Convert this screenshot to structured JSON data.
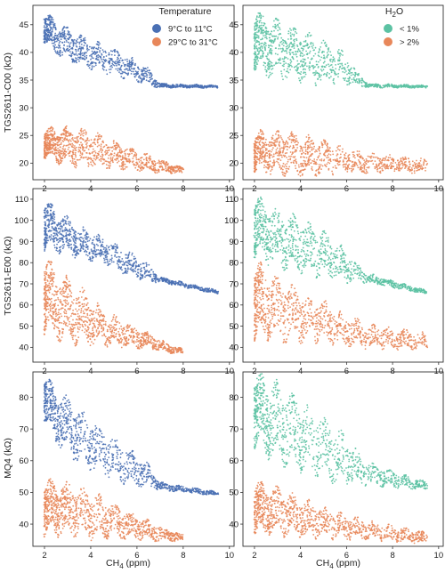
{
  "colors": {
    "blue": "#4a70b4",
    "orange": "#e8875a",
    "green": "#5cc2a3"
  },
  "axis_labels": {
    "x_prefix": "CH",
    "x_sub": "4",
    "x_suffix": " (ppm)",
    "row_ylabels": [
      "TGS2611-C00 (kΩ)",
      "TGS2611-E00 (kΩ)",
      "MQ4 (kΩ)"
    ]
  },
  "legend_left": {
    "title": "Temperature",
    "items": [
      {
        "label": "9°C to 11°C",
        "color": "#4a70b4"
      },
      {
        "label": "29°C to 31°C",
        "color": "#e8875a"
      }
    ]
  },
  "legend_right": {
    "title_prefix": "H",
    "title_sub": "2",
    "title_suffix": "O",
    "items": [
      {
        "label": "< 1%",
        "color": "#5cc2a3"
      },
      {
        "label": "> 2%",
        "color": "#e8875a"
      }
    ]
  },
  "chart_data": [
    {
      "type": "scatter",
      "row": 0,
      "col": 0,
      "xlim": [
        1.5,
        10.2
      ],
      "ylim": [
        17,
        48.5
      ],
      "xticks": [
        2,
        4,
        6,
        8,
        10
      ],
      "yticks": [
        20,
        25,
        30,
        35,
        40,
        45
      ],
      "ylabel": "TGS2611-C00 (kΩ)",
      "series": [
        {
          "name": "9°C to 11°C",
          "color": "#4a70b4",
          "band": [
            [
              2.0,
              44.5,
              4.5
            ],
            [
              2.5,
              42.5,
              5.0
            ],
            [
              3.5,
              40.5,
              4.5
            ],
            [
              4.5,
              39.0,
              4.0
            ],
            [
              5.5,
              37.5,
              3.5
            ],
            [
              6.5,
              35.5,
              2.5
            ],
            [
              7.0,
              34.0,
              0.6
            ],
            [
              9.5,
              33.8,
              0.4
            ]
          ]
        },
        {
          "name": "29°C to 31°C",
          "color": "#e8875a",
          "band": [
            [
              2.0,
              23.5,
              4.5
            ],
            [
              3.0,
              23.0,
              5.5
            ],
            [
              4.0,
              22.5,
              5.5
            ],
            [
              5.0,
              21.5,
              4.0
            ],
            [
              6.0,
              20.5,
              3.0
            ],
            [
              7.0,
              19.5,
              2.0
            ],
            [
              8.0,
              18.6,
              0.8
            ]
          ]
        }
      ]
    },
    {
      "type": "scatter",
      "row": 0,
      "col": 1,
      "xlim": [
        1.5,
        10.2
      ],
      "ylim": [
        17,
        48.5
      ],
      "xticks": [
        2,
        4,
        6,
        8,
        10
      ],
      "yticks": [
        20,
        25,
        30,
        35,
        40,
        45
      ],
      "series": [
        {
          "name": "< 1%",
          "color": "#5cc2a3",
          "band": [
            [
              2.0,
              42.0,
              9.0
            ],
            [
              3.0,
              40.5,
              8.5
            ],
            [
              4.0,
              39.5,
              7.5
            ],
            [
              5.0,
              38.0,
              6.5
            ],
            [
              6.0,
              37.0,
              4.5
            ],
            [
              6.5,
              35.0,
              2.0
            ],
            [
              7.0,
              34.0,
              0.6
            ],
            [
              9.5,
              33.8,
              0.4
            ]
          ]
        },
        {
          "name": "> 2%",
          "color": "#e8875a",
          "band": [
            [
              2.0,
              22.0,
              6.0
            ],
            [
              3.0,
              22.0,
              6.5
            ],
            [
              4.0,
              21.5,
              6.0
            ],
            [
              5.0,
              21.0,
              5.0
            ],
            [
              6.0,
              20.5,
              3.5
            ],
            [
              7.0,
              20.0,
              3.0
            ],
            [
              8.0,
              19.8,
              2.5
            ],
            [
              9.5,
              19.5,
              2.0
            ]
          ]
        }
      ]
    },
    {
      "type": "scatter",
      "row": 1,
      "col": 0,
      "xlim": [
        1.5,
        10.2
      ],
      "ylim": [
        33,
        115
      ],
      "xticks": [
        2,
        4,
        6,
        8,
        10
      ],
      "yticks": [
        40,
        50,
        60,
        70,
        80,
        90,
        100,
        110
      ],
      "ylabel": "TGS2611-E00 (kΩ)",
      "series": [
        {
          "name": "9°C to 11°C",
          "color": "#4a70b4",
          "band": [
            [
              2.0,
              98.0,
              20.0
            ],
            [
              2.5,
              95.0,
              16.0
            ],
            [
              3.5,
              90.0,
              12.0
            ],
            [
              4.5,
              86.0,
              10.0
            ],
            [
              5.5,
              80.0,
              10.0
            ],
            [
              6.5,
              75.0,
              7.0
            ],
            [
              7.0,
              72.0,
              2.0
            ],
            [
              9.5,
              66.0,
              1.5
            ]
          ]
        },
        {
          "name": "29°C to 31°C",
          "color": "#e8875a",
          "band": [
            [
              2.0,
              65.0,
              30.0
            ],
            [
              2.5,
              60.0,
              26.0
            ],
            [
              3.5,
              55.0,
              22.0
            ],
            [
              4.5,
              50.0,
              14.0
            ],
            [
              5.5,
              46.0,
              10.0
            ],
            [
              6.5,
              43.0,
              6.0
            ],
            [
              7.5,
              39.0,
              3.0
            ],
            [
              8.0,
              38.0,
              2.0
            ]
          ]
        }
      ]
    },
    {
      "type": "scatter",
      "row": 1,
      "col": 1,
      "xlim": [
        1.5,
        10.2
      ],
      "ylim": [
        33,
        115
      ],
      "xticks": [
        2,
        4,
        6,
        8,
        10
      ],
      "yticks": [
        40,
        50,
        60,
        70,
        80,
        90,
        100,
        110
      ],
      "series": [
        {
          "name": "< 1%",
          "color": "#5cc2a3",
          "band": [
            [
              2.0,
              97.0,
              24.0
            ],
            [
              3.0,
              92.0,
              22.0
            ],
            [
              4.0,
              88.0,
              20.0
            ],
            [
              5.0,
              84.0,
              18.0
            ],
            [
              6.0,
              78.0,
              12.0
            ],
            [
              6.8,
              73.0,
              4.0
            ],
            [
              9.5,
              66.0,
              1.5
            ]
          ]
        },
        {
          "name": "> 2%",
          "color": "#e8875a",
          "band": [
            [
              2.0,
              62.0,
              30.0
            ],
            [
              3.0,
              58.0,
              24.0
            ],
            [
              4.0,
              55.0,
              20.0
            ],
            [
              5.0,
              52.0,
              16.0
            ],
            [
              6.0,
              48.0,
              12.0
            ],
            [
              7.0,
              45.0,
              9.0
            ],
            [
              8.0,
              44.0,
              8.0
            ],
            [
              9.5,
              43.0,
              6.0
            ]
          ]
        }
      ]
    },
    {
      "type": "scatter",
      "row": 2,
      "col": 0,
      "xlim": [
        1.5,
        10.2
      ],
      "ylim": [
        33,
        88
      ],
      "xticks": [
        2,
        4,
        6,
        8,
        10
      ],
      "yticks": [
        40,
        50,
        60,
        70,
        80
      ],
      "ylabel": "MQ4 (kΩ)",
      "series": [
        {
          "name": "9°C to 11°C",
          "color": "#4a70b4",
          "band": [
            [
              2.0,
              80.0,
              12.0
            ],
            [
              2.5,
              74.0,
              14.0
            ],
            [
              3.5,
              68.0,
              14.0
            ],
            [
              4.5,
              63.0,
              12.0
            ],
            [
              5.5,
              59.0,
              10.0
            ],
            [
              6.5,
              55.0,
              6.0
            ],
            [
              7.0,
              52.0,
              2.0
            ],
            [
              9.5,
              49.5,
              1.0
            ]
          ]
        },
        {
          "name": "29°C to 31°C",
          "color": "#e8875a",
          "band": [
            [
              2.0,
              45.0,
              14.0
            ],
            [
              3.0,
              45.0,
              14.0
            ],
            [
              4.0,
              43.0,
              12.0
            ],
            [
              5.0,
              41.0,
              9.0
            ],
            [
              6.0,
              39.0,
              6.0
            ],
            [
              7.0,
              37.0,
              4.0
            ],
            [
              8.0,
              35.5,
              2.0
            ]
          ]
        }
      ]
    },
    {
      "type": "scatter",
      "row": 2,
      "col": 1,
      "xlim": [
        1.5,
        10.2
      ],
      "ylim": [
        33,
        88
      ],
      "xticks": [
        2,
        4,
        6,
        8,
        10
      ],
      "yticks": [
        40,
        50,
        60,
        70,
        80
      ],
      "series": [
        {
          "name": "< 1%",
          "color": "#5cc2a3",
          "band": [
            [
              2.0,
              76.0,
              20.0
            ],
            [
              3.0,
              72.0,
              20.0
            ],
            [
              4.0,
              68.0,
              18.0
            ],
            [
              5.0,
              64.0,
              16.0
            ],
            [
              6.0,
              60.0,
              12.0
            ],
            [
              6.8,
              56.0,
              6.0
            ],
            [
              9.5,
              52.0,
              2.0
            ]
          ]
        },
        {
          "name": "> 2%",
          "color": "#e8875a",
          "band": [
            [
              2.0,
              45.0,
              14.0
            ],
            [
              3.0,
              44.0,
              12.0
            ],
            [
              4.0,
              42.0,
              10.0
            ],
            [
              5.0,
              40.5,
              8.0
            ],
            [
              6.0,
              39.0,
              6.0
            ],
            [
              7.0,
              38.0,
              5.0
            ],
            [
              8.0,
              37.0,
              4.0
            ],
            [
              9.5,
              35.5,
              3.0
            ]
          ]
        }
      ]
    }
  ]
}
